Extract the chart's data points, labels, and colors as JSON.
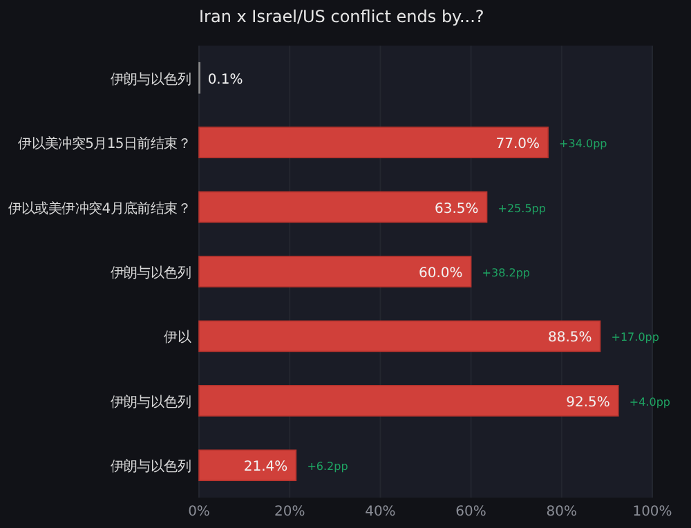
{
  "chart_data": {
    "type": "bar",
    "orientation": "horizontal",
    "title": "Iran x Israel/US conflict ends by...?",
    "categories": [
      "伊朗与以色列",
      "伊以美冲突5月15日前结束？",
      "伊以或美伊冲突4月底前结束？",
      "伊朗与以色列",
      "伊以",
      "伊朗与以色列",
      "伊朗与以色列"
    ],
    "values": [
      0.1,
      77.0,
      63.5,
      60.0,
      88.5,
      92.5,
      21.4
    ],
    "value_labels": [
      "0.1%",
      "77.0%",
      "63.5%",
      "60.0%",
      "88.5%",
      "92.5%",
      "21.4%"
    ],
    "color": "#d0403a",
    "annotations": [
      "+34.0pp",
      "+25.5pp",
      "+38.2pp",
      "+17.0pp",
      "+4.0pp",
      "+6.2pp"
    ],
    "xlim": [
      0,
      100
    ],
    "xticks": [
      {
        "value": 0,
        "label": "0%"
      },
      {
        "value": 20,
        "label": "20%"
      },
      {
        "value": 40,
        "label": "40%"
      },
      {
        "value": 60,
        "label": "60%"
      },
      {
        "value": 80,
        "label": "80%"
      },
      {
        "value": 100,
        "label": "100%"
      }
    ],
    "grid": "x"
  }
}
